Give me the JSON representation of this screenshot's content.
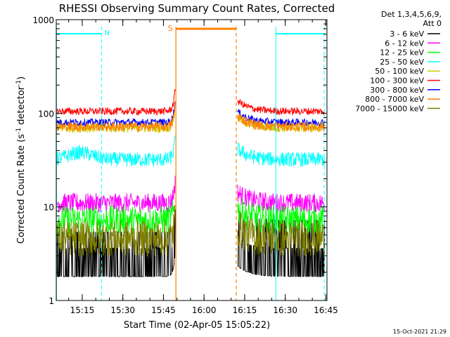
{
  "chart_data": {
    "type": "line",
    "title": "RHESSI Observing Summary Count Rates, Corrected",
    "xlabel": "Start Time (02-Apr-05 15:05:22)",
    "ylabel_main": "Corrected Count Rate (s",
    "ylabel_sup": "-1",
    "ylabel_mid": " detector",
    "ylabel_sup2": "-1",
    "ylabel_end": ")",
    "y_scale": "log",
    "ylim": [
      1,
      1000
    ],
    "xlim_minutes": [
      0,
      100
    ],
    "y_ticks": [
      "1",
      "10",
      "100",
      "1000"
    ],
    "x_ticks": [
      {
        "label": "15:15",
        "min": 9.6
      },
      {
        "label": "15:30",
        "min": 24.6
      },
      {
        "label": "15:45",
        "min": 39.6
      },
      {
        "label": "16:00",
        "min": 54.6
      },
      {
        "label": "16:15",
        "min": 69.6
      },
      {
        "label": "16:30",
        "min": 84.6
      },
      {
        "label": "16:45",
        "min": 99.6
      }
    ],
    "detectors": "Det 1,3,4,5,6,9,",
    "attenuator": "Att 0",
    "flags": {
      "night_label": "N",
      "saa_label": "S",
      "night_periods": [
        [
          0,
          16.7
        ],
        [
          81.1,
          99.0
        ]
      ],
      "saa_period": [
        44.2,
        66.5
      ]
    },
    "series": [
      {
        "name": "3 - 6 keV",
        "color": "#000000",
        "base": 1.8,
        "spread": 0.5,
        "preLevel": 1.8,
        "postLevel": 1.8
      },
      {
        "name": "6 - 12 keV",
        "color": "#ff00ff",
        "base": 11,
        "spread": 0.08
      },
      {
        "name": "12 - 25 keV",
        "color": "#00ff00",
        "base": 7.2,
        "spread": 0.12
      },
      {
        "name": "25 - 50 keV",
        "color": "#00ffff",
        "base": 32,
        "spread": 0.06,
        "bump": 6
      },
      {
        "name": "50 - 100 keV",
        "color": "#cccc00",
        "base": 70,
        "spread": 0.04
      },
      {
        "name": "100 - 300 keV",
        "color": "#ff0000",
        "base": 105,
        "spread": 0.03
      },
      {
        "name": "300 - 800 keV",
        "color": "#0000ff",
        "base": 80,
        "spread": 0.03
      },
      {
        "name": "800 - 7000 keV",
        "color": "#ff8000",
        "base": 72,
        "spread": 0.04
      },
      {
        "name": "7000 - 15000 keV",
        "color": "#808000",
        "base": 4.6,
        "spread": 0.15
      }
    ],
    "timestamp": "15-Oct-2021 21:29"
  }
}
